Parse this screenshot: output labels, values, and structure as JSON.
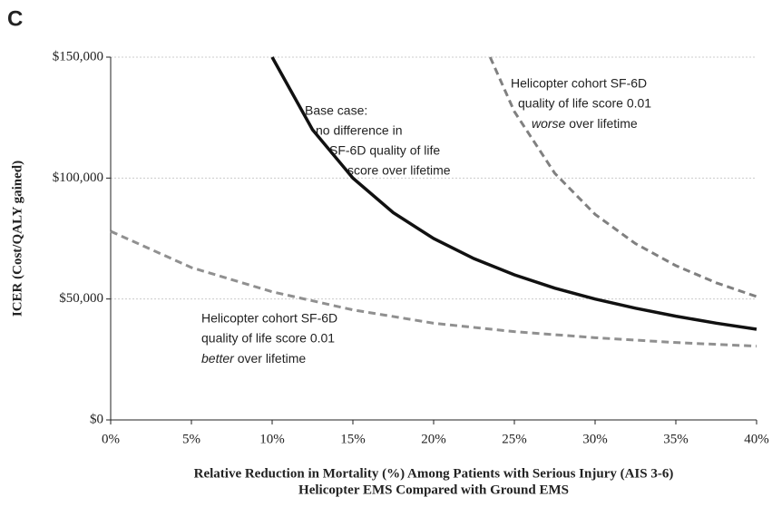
{
  "panel": "C",
  "chart_data": {
    "type": "line",
    "xlabel": [
      "Relative Reduction in Mortality (%) Among Patients with Serious Injury (AIS 3-6)",
      "Helicopter EMS Compared with Ground EMS"
    ],
    "ylabel": "ICER (Cost/QALY gained)",
    "xlim": [
      0,
      40
    ],
    "ylim": [
      0,
      150000
    ],
    "xticks": [
      {
        "value": 0,
        "label": "0%"
      },
      {
        "value": 5,
        "label": "5%"
      },
      {
        "value": 10,
        "label": "10%"
      },
      {
        "value": 15,
        "label": "15%"
      },
      {
        "value": 20,
        "label": "20%"
      },
      {
        "value": 25,
        "label": "25%"
      },
      {
        "value": 30,
        "label": "30%"
      },
      {
        "value": 35,
        "label": "35%"
      },
      {
        "value": 40,
        "label": "40%"
      }
    ],
    "yticks": [
      {
        "value": 0,
        "label": "$0"
      },
      {
        "value": 50000,
        "label": "$50,000"
      },
      {
        "value": 100000,
        "label": "$100,000"
      },
      {
        "value": 150000,
        "label": "$150,000"
      }
    ],
    "grid": true,
    "series": [
      {
        "name": "Base case",
        "color": "#111111",
        "dashed": false,
        "x": [
          10,
          12.5,
          15,
          17.5,
          20,
          22.5,
          25,
          27.5,
          30,
          32.5,
          35,
          37.5,
          40
        ],
        "values": [
          150000,
          120000,
          100000,
          85700,
          75000,
          66700,
          60000,
          54500,
          50000,
          46200,
          42900,
          40000,
          37500
        ]
      },
      {
        "name": "Helicopter cohort worse",
        "color": "#808080",
        "dashed": true,
        "x": [
          23.5,
          25,
          27.5,
          30,
          32.5,
          35,
          37.5,
          40
        ],
        "values": [
          150000,
          127500,
          102000,
          85000,
          72900,
          63800,
          56700,
          51000
        ]
      },
      {
        "name": "Helicopter cohort better",
        "color": "#909090",
        "dashed": true,
        "x": [
          0,
          5,
          10,
          15,
          20,
          25,
          30,
          35,
          40
        ],
        "values": [
          78000,
          63000,
          53000,
          45500,
          40000,
          36500,
          34000,
          32000,
          30500
        ]
      }
    ],
    "annotations": [
      {
        "lines": [
          "Base case:",
          "no difference  in",
          "SF-6D quality of life",
          "score over lifetime"
        ]
      },
      {
        "lines": [
          "Helicopter cohort SF-6D",
          "quality of life score 0.01",
          "worse",
          " over lifetime"
        ]
      },
      {
        "lines": [
          "Helicopter cohort SF-6D",
          "quality of life score 0.01",
          "better",
          " over lifetime"
        ]
      }
    ]
  }
}
